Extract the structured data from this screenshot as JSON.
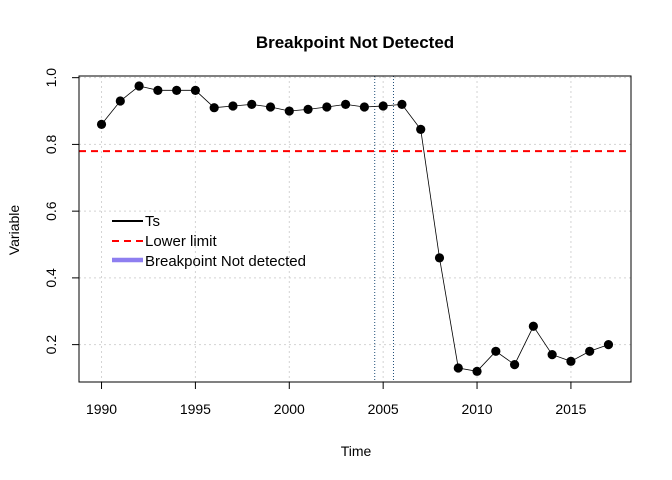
{
  "chart_data": {
    "type": "line",
    "title": "Breakpoint Not Detected",
    "xlabel": "Time",
    "ylabel": "Variable",
    "xlim": [
      1988.8,
      2018.2
    ],
    "ylim": [
      0.088,
      1.005
    ],
    "x_ticks": [
      1990,
      1995,
      2000,
      2005,
      2010,
      2015
    ],
    "y_ticks": [
      0.2,
      0.4,
      0.6,
      0.8,
      1.0
    ],
    "x_tick_labels": [
      "1990",
      "1995",
      "2000",
      "2005",
      "2010",
      "2015"
    ],
    "y_tick_labels": [
      "0.2",
      "0.4",
      "0.6",
      "0.8",
      "1.0"
    ],
    "grid": true,
    "series": [
      {
        "name": "Ts",
        "color": "#000000",
        "x": [
          1990,
          1991,
          1992,
          1993,
          1994,
          1995,
          1996,
          1997,
          1998,
          1999,
          2000,
          2001,
          2002,
          2003,
          2004,
          2005,
          2006,
          2007,
          2008,
          2009,
          2010,
          2011,
          2012,
          2013,
          2014,
          2015,
          2016,
          2017
        ],
        "y": [
          0.86,
          0.93,
          0.975,
          0.962,
          0.962,
          0.962,
          0.91,
          0.915,
          0.92,
          0.912,
          0.9,
          0.905,
          0.912,
          0.92,
          0.912,
          0.915,
          0.92,
          0.845,
          0.46,
          0.13,
          0.12,
          0.18,
          0.14,
          0.255,
          0.17,
          0.15,
          0.18,
          0.2
        ]
      }
    ],
    "reference_lines": [
      {
        "name": "Lower limit",
        "orientation": "horizontal",
        "value": 0.78,
        "color": "#ff0000",
        "style": "dashed"
      },
      {
        "orientation": "vertical",
        "value": 2004.55,
        "color": "#1f4e79",
        "style": "dotted"
      },
      {
        "orientation": "vertical",
        "value": 2005.55,
        "color": "#1f4e79",
        "style": "dotted"
      }
    ],
    "legend": {
      "placement": "left-middle",
      "entries": [
        {
          "label": "Ts",
          "color": "#000000",
          "style": "solid"
        },
        {
          "label": "Lower limit",
          "color": "#ff0000",
          "style": "dashed"
        },
        {
          "label": "Breakpoint Not detected",
          "color": "#7b68ee",
          "style": "thick"
        }
      ]
    }
  }
}
